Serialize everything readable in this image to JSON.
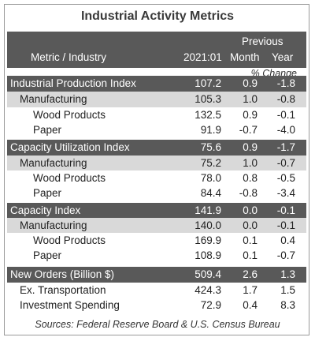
{
  "title": "Industrial Activity Metrics",
  "header": {
    "col_label": "Metric / Industry",
    "col_value": "2021:01",
    "col_previous": "Previous",
    "col_month": "Month",
    "col_year": "Year",
    "pct_note": "% Change"
  },
  "rows": [
    {
      "label": "Industrial Production Index",
      "value": "107.2",
      "month": "0.9",
      "year": "-1.8",
      "style": "dark",
      "indent": 0
    },
    {
      "label": "Manufacturing",
      "value": "105.3",
      "month": "1.0",
      "year": "-0.8",
      "style": "light",
      "indent": 1
    },
    {
      "label": "Wood Products",
      "value": "132.5",
      "month": "0.9",
      "year": "-0.1",
      "style": "white",
      "indent": 2
    },
    {
      "label": "Paper",
      "value": "91.9",
      "month": "-0.7",
      "year": "-4.0",
      "style": "white",
      "indent": 2
    },
    {
      "label": "Capacity Utilization Index",
      "value": "75.6",
      "month": "0.9",
      "year": "-1.7",
      "style": "dark",
      "indent": 0
    },
    {
      "label": "Manufacturing",
      "value": "75.2",
      "month": "1.0",
      "year": "-0.7",
      "style": "light",
      "indent": 1
    },
    {
      "label": "Wood Products",
      "value": "78.0",
      "month": "0.8",
      "year": "-0.5",
      "style": "white",
      "indent": 2
    },
    {
      "label": "Paper",
      "value": "84.4",
      "month": "-0.8",
      "year": "-3.4",
      "style": "white",
      "indent": 2
    },
    {
      "label": "Capacity Index",
      "value": "141.9",
      "month": "0.0",
      "year": "-0.1",
      "style": "dark",
      "indent": 0
    },
    {
      "label": "Manufacturing",
      "value": "140.0",
      "month": "0.0",
      "year": "-0.1",
      "style": "light",
      "indent": 1
    },
    {
      "label": "Wood Products",
      "value": "169.9",
      "month": "0.1",
      "year": "0.4",
      "style": "white",
      "indent": 2
    },
    {
      "label": "Paper",
      "value": "108.9",
      "month": "0.1",
      "year": "-0.7",
      "style": "white",
      "indent": 2
    },
    {
      "label": "New Orders (Billion $)",
      "value": "509.4",
      "month": "2.6",
      "year": "1.3",
      "style": "dark",
      "indent": 0
    },
    {
      "label": "Ex. Transportation",
      "value": "424.3",
      "month": "1.7",
      "year": "1.5",
      "style": "white",
      "indent": 1
    },
    {
      "label": "Investment Spending",
      "value": "72.9",
      "month": "0.4",
      "year": "8.3",
      "style": "white",
      "indent": 1
    }
  ],
  "source": "Sources: Federal Reserve Board & U.S. Census Bureau"
}
